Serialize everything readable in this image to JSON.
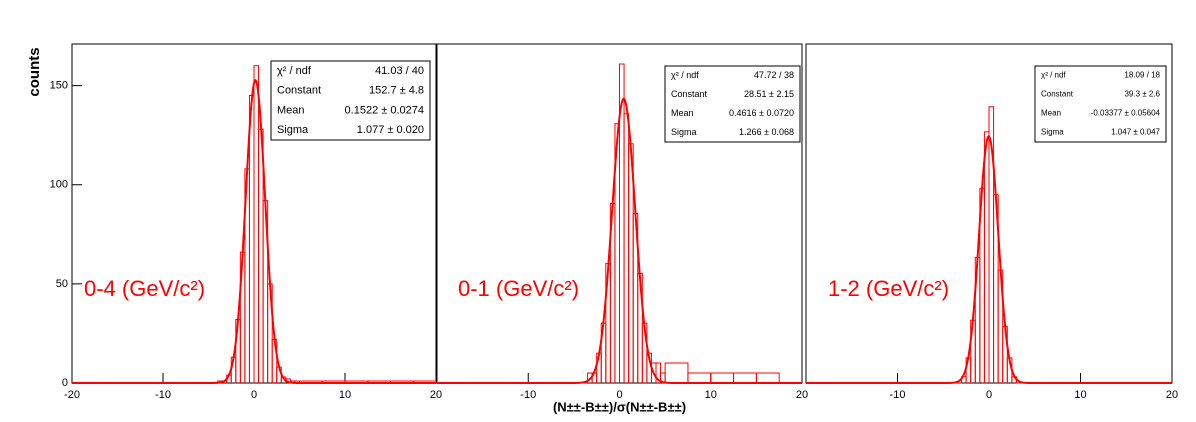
{
  "chart_data": [
    {
      "type": "histogram",
      "ylabel": "counts",
      "annotation": "0-4 (GeV/c²)",
      "color": "#ff0000",
      "bins": [
        -20,
        -5,
        -4.5,
        -4,
        -3.5,
        -3,
        -2.5,
        -2,
        -1.5,
        -1,
        -0.5,
        0,
        0.5,
        1,
        1.5,
        2,
        2.5,
        3,
        3.5,
        4,
        4.5,
        5,
        7.5,
        10,
        12.5,
        15,
        17.5,
        20
      ],
      "values": [
        0,
        0,
        0,
        1,
        1,
        4,
        13,
        32,
        66,
        108,
        145,
        160,
        128,
        92,
        50,
        22,
        8,
        3,
        2,
        1,
        1,
        1,
        1,
        1,
        1,
        1,
        1
      ],
      "xlim": [
        -20,
        20
      ],
      "xticks": [
        -20,
        -10,
        0,
        10,
        20
      ],
      "ylim": [
        0,
        171
      ],
      "yticks": [
        0,
        50,
        100,
        150
      ],
      "stats": [
        {
          "name": "χ² / ndf",
          "value": 41.03,
          "ndf": 40,
          "label": "41.03 / 40"
        },
        {
          "name": "Constant",
          "value": 152.7,
          "error": 4.8,
          "label": "152.7 ± 4.8"
        },
        {
          "name": "Mean",
          "value": 0.1522,
          "error": 0.0274,
          "label": "0.1522 ± 0.0274"
        },
        {
          "name": "Sigma",
          "value": 1.077,
          "error": 0.02,
          "label": "1.077 ± 0.020"
        }
      ]
    },
    {
      "type": "histogram",
      "xlabel": "(N±±-B±±)/σ(N±±-B±±)",
      "annotation": "0-1 (GeV/c²)",
      "color": "#ff0000",
      "bins": [
        -20,
        -5,
        -4.5,
        -4,
        -3.5,
        -3,
        -2.5,
        -2,
        -1.5,
        -1,
        -0.5,
        0,
        0.5,
        1,
        1.5,
        2,
        2.5,
        3,
        3.5,
        4,
        4.5,
        5,
        7.5,
        10,
        12.5,
        15,
        17.5,
        20
      ],
      "values": [
        0,
        0,
        0,
        0,
        1,
        1,
        3,
        6,
        12,
        18,
        26,
        32,
        27,
        24,
        17,
        11,
        6,
        3,
        2,
        2,
        1,
        2,
        1,
        1,
        1,
        1,
        0
      ],
      "xlim": [
        -20,
        20
      ],
      "xticks": [
        -10,
        0,
        10,
        20
      ],
      "ylim": [
        0,
        34
      ],
      "stats": [
        {
          "name": "χ² / ndf",
          "value": 47.72,
          "ndf": 38,
          "label": "47.72 / 38"
        },
        {
          "name": "Constant",
          "value": 28.51,
          "error": 2.15,
          "label": "28.51 ± 2.15"
        },
        {
          "name": "Mean",
          "value": 0.4616,
          "error": 0.072,
          "label": "0.4616 ± 0.0720"
        },
        {
          "name": "Sigma",
          "value": 1.266,
          "error": 0.068,
          "label": "1.266 ± 0.068"
        }
      ]
    },
    {
      "type": "histogram",
      "annotation": "1-2 (GeV/c²)",
      "color": "#ff0000",
      "bins": [
        -20,
        -5,
        -4.5,
        -4,
        -3.5,
        -3,
        -2.5,
        -2,
        -1.5,
        -1,
        -0.5,
        0,
        0.5,
        1,
        1.5,
        2,
        2.5,
        3,
        3.5,
        4,
        4.5,
        5,
        7.5,
        10,
        12.5,
        15,
        17.5,
        20
      ],
      "values": [
        0,
        0,
        0,
        0,
        0,
        1,
        4,
        10,
        20,
        31,
        40,
        44,
        30,
        18,
        9,
        4,
        1,
        0,
        0,
        0,
        0,
        0,
        0,
        0,
        0,
        0,
        0
      ],
      "xlim": [
        -20,
        20
      ],
      "xticks": [
        -10,
        0,
        10,
        20
      ],
      "ylim": [
        0,
        54
      ],
      "stats": [
        {
          "name": "χ² / ndf",
          "value": 18.09,
          "ndf": 18,
          "label": "18.09 / 18"
        },
        {
          "name": "Constant",
          "value": 39.3,
          "error": 2.6,
          "label": "39.3 ± 2.6"
        },
        {
          "name": "Mean",
          "value": -0.03377,
          "error": 0.05604,
          "label": "-0.03377 ± 0.05604"
        },
        {
          "name": "Sigma",
          "value": 1.047,
          "error": 0.047,
          "label": "1.047 ± 0.047"
        }
      ]
    }
  ]
}
